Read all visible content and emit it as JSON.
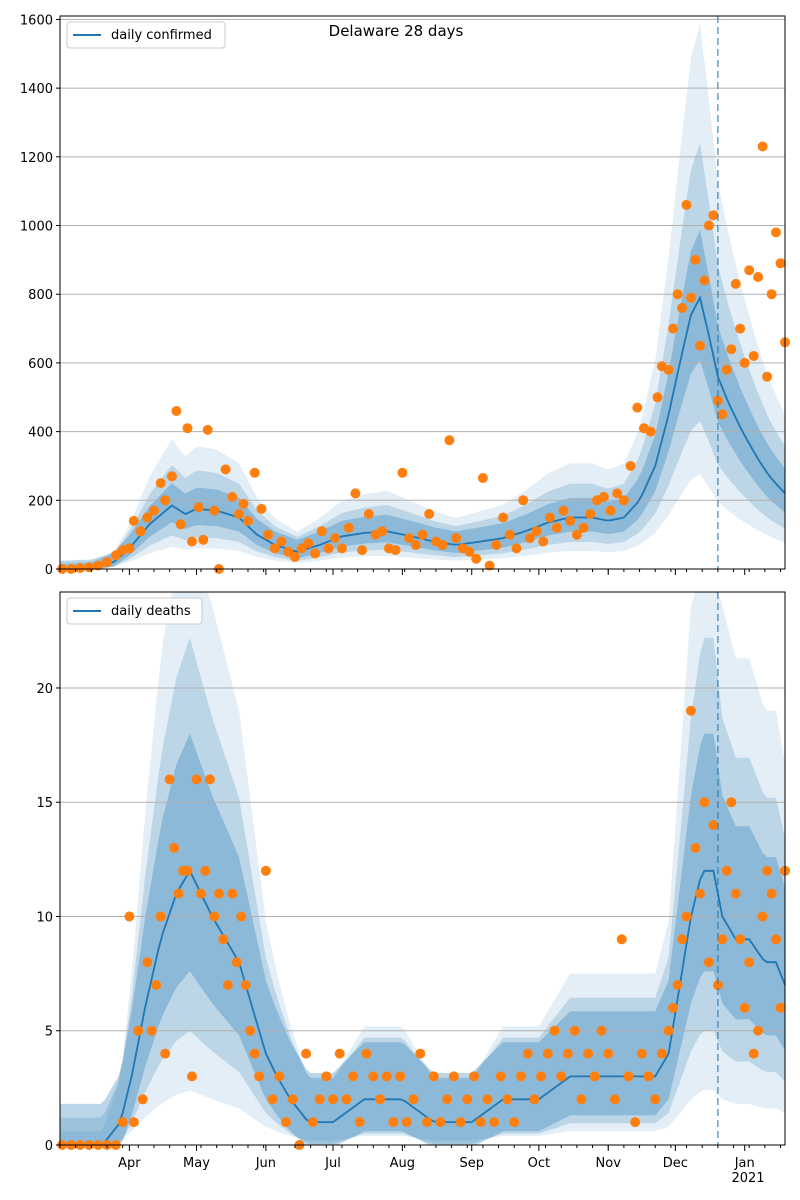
{
  "colors": {
    "line": "#1f77b4",
    "dots": "#ff7f0e",
    "band": "#1f77b4",
    "grid": "#b0b0b0",
    "vline": "#1f77b4"
  },
  "chart_data": [
    {
      "type": "line",
      "title": "Delaware 28 days",
      "legend": {
        "label": "daily confirmed",
        "placement": "top-left"
      },
      "grid": "horizontal",
      "ylim": [
        0,
        1610
      ],
      "yticks": [
        0,
        200,
        400,
        600,
        800,
        1000,
        1200,
        1400,
        1600
      ],
      "xrange_dates": [
        "2020-03-01",
        "2021-01-19"
      ],
      "month_ticks": [
        {
          "date": "2020-04-01",
          "label": "Apr"
        },
        {
          "date": "2020-05-01",
          "label": "May"
        },
        {
          "date": "2020-06-01",
          "label": "Jun"
        },
        {
          "date": "2020-07-01",
          "label": "Jul"
        },
        {
          "date": "2020-08-01",
          "label": "Aug"
        },
        {
          "date": "2020-09-01",
          "label": "Sep"
        },
        {
          "date": "2020-10-01",
          "label": "Oct"
        },
        {
          "date": "2020-11-01",
          "label": "Nov"
        },
        {
          "date": "2020-12-01",
          "label": "Dec"
        },
        {
          "date": "2021-01-01",
          "label": "Jan"
        }
      ],
      "year_label": "",
      "vline_date": "2020-12-20",
      "series_line": {
        "name": "daily confirmed",
        "x": [
          "2020-03-01",
          "2020-03-15",
          "2020-03-25",
          "2020-04-01",
          "2020-04-10",
          "2020-04-20",
          "2020-04-26",
          "2020-05-01",
          "2020-05-10",
          "2020-05-20",
          "2020-05-28",
          "2020-06-05",
          "2020-06-15",
          "2020-06-25",
          "2020-07-05",
          "2020-07-15",
          "2020-07-25",
          "2020-08-05",
          "2020-08-15",
          "2020-08-25",
          "2020-09-05",
          "2020-09-15",
          "2020-09-25",
          "2020-10-05",
          "2020-10-15",
          "2020-10-25",
          "2020-11-01",
          "2020-11-08",
          "2020-11-15",
          "2020-11-22",
          "2020-11-28",
          "2020-12-03",
          "2020-12-08",
          "2020-12-12",
          "2020-12-16",
          "2020-12-20",
          "2020-12-25",
          "2020-12-31",
          "2021-01-06",
          "2021-01-12",
          "2021-01-19"
        ],
        "y": [
          0,
          3,
          20,
          60,
          130,
          185,
          160,
          175,
          170,
          150,
          100,
          70,
          50,
          70,
          95,
          105,
          110,
          95,
          80,
          70,
          80,
          90,
          110,
          135,
          150,
          150,
          140,
          150,
          200,
          300,
          450,
          600,
          740,
          790,
          680,
          560,
          480,
          400,
          330,
          270,
          220
        ]
      },
      "band_levels": [
        {
          "opacity": 0.3,
          "scale_lo": 0.78,
          "scale_hi": 1.22
        },
        {
          "opacity": 0.2,
          "scale_lo": 0.55,
          "scale_hi": 1.55
        },
        {
          "opacity": 0.12,
          "scale_lo": 0.35,
          "scale_hi": 2.0
        }
      ],
      "series_points": {
        "name": "",
        "x": [
          "2020-03-02",
          "2020-03-06",
          "2020-03-10",
          "2020-03-14",
          "2020-03-18",
          "2020-03-22",
          "2020-03-26",
          "2020-03-29",
          "2020-04-01",
          "2020-04-03",
          "2020-04-06",
          "2020-04-09",
          "2020-04-12",
          "2020-04-15",
          "2020-04-17",
          "2020-04-20",
          "2020-04-22",
          "2020-04-24",
          "2020-04-27",
          "2020-04-29",
          "2020-05-02",
          "2020-05-04",
          "2020-05-06",
          "2020-05-09",
          "2020-05-11",
          "2020-05-14",
          "2020-05-17",
          "2020-05-20",
          "2020-05-22",
          "2020-05-24",
          "2020-05-27",
          "2020-05-30",
          "2020-06-02",
          "2020-06-05",
          "2020-06-08",
          "2020-06-11",
          "2020-06-14",
          "2020-06-17",
          "2020-06-20",
          "2020-06-23",
          "2020-06-26",
          "2020-06-29",
          "2020-07-02",
          "2020-07-05",
          "2020-07-08",
          "2020-07-11",
          "2020-07-14",
          "2020-07-17",
          "2020-07-20",
          "2020-07-23",
          "2020-07-26",
          "2020-07-29",
          "2020-08-01",
          "2020-08-04",
          "2020-08-07",
          "2020-08-10",
          "2020-08-13",
          "2020-08-16",
          "2020-08-19",
          "2020-08-22",
          "2020-08-25",
          "2020-08-28",
          "2020-08-31",
          "2020-09-03",
          "2020-09-06",
          "2020-09-09",
          "2020-09-12",
          "2020-09-15",
          "2020-09-18",
          "2020-09-21",
          "2020-09-24",
          "2020-09-27",
          "2020-09-30",
          "2020-10-03",
          "2020-10-06",
          "2020-10-09",
          "2020-10-12",
          "2020-10-15",
          "2020-10-18",
          "2020-10-21",
          "2020-10-24",
          "2020-10-27",
          "2020-10-30",
          "2020-11-02",
          "2020-11-05",
          "2020-11-08",
          "2020-11-11",
          "2020-11-14",
          "2020-11-17",
          "2020-11-20",
          "2020-11-23",
          "2020-11-25",
          "2020-11-28",
          "2020-11-30",
          "2020-12-02",
          "2020-12-04",
          "2020-12-06",
          "2020-12-08",
          "2020-12-10",
          "2020-12-12",
          "2020-12-14",
          "2020-12-16",
          "2020-12-18",
          "2020-12-20",
          "2020-12-22",
          "2020-12-24",
          "2020-12-26",
          "2020-12-28",
          "2020-12-30",
          "2021-01-01",
          "2021-01-03",
          "2021-01-05",
          "2021-01-07",
          "2021-01-09",
          "2021-01-11",
          "2021-01-13",
          "2021-01-15",
          "2021-01-17",
          "2021-01-19"
        ],
        "y": [
          0,
          0,
          3,
          5,
          10,
          20,
          40,
          55,
          60,
          140,
          110,
          150,
          170,
          250,
          200,
          270,
          460,
          130,
          410,
          80,
          180,
          85,
          405,
          170,
          0,
          290,
          210,
          160,
          190,
          140,
          280,
          175,
          100,
          60,
          80,
          50,
          35,
          60,
          75,
          45,
          110,
          60,
          90,
          60,
          120,
          220,
          55,
          160,
          100,
          110,
          60,
          55,
          280,
          90,
          70,
          100,
          160,
          80,
          70,
          375,
          90,
          60,
          50,
          30,
          265,
          10,
          70,
          150,
          100,
          60,
          200,
          90,
          110,
          80,
          150,
          120,
          170,
          140,
          100,
          120,
          160,
          200,
          210,
          170,
          220,
          200,
          300,
          470,
          410,
          400,
          500,
          590,
          580,
          700,
          800,
          760,
          1060,
          790,
          900,
          650,
          840,
          1000,
          1030,
          490,
          450,
          580,
          640,
          830,
          700,
          600,
          870,
          620,
          850,
          1230,
          560,
          800,
          980,
          890,
          660
        ]
      }
    },
    {
      "type": "line",
      "title": "",
      "legend": {
        "label": "daily deaths",
        "placement": "top-left"
      },
      "grid": "horizontal",
      "ylim": [
        0,
        24.2
      ],
      "yticks": [
        0,
        5,
        10,
        15,
        20
      ],
      "xrange_dates": [
        "2020-03-01",
        "2021-01-19"
      ],
      "month_ticks": [
        {
          "date": "2020-04-01",
          "label": "Apr"
        },
        {
          "date": "2020-05-01",
          "label": "May"
        },
        {
          "date": "2020-06-01",
          "label": "Jun"
        },
        {
          "date": "2020-07-01",
          "label": "Jul"
        },
        {
          "date": "2020-08-01",
          "label": "Aug"
        },
        {
          "date": "2020-09-01",
          "label": "Sep"
        },
        {
          "date": "2020-10-01",
          "label": "Oct"
        },
        {
          "date": "2020-11-01",
          "label": "Nov"
        },
        {
          "date": "2020-12-01",
          "label": "Dec"
        },
        {
          "date": "2021-01-01",
          "label": "Jan"
        }
      ],
      "year_label": "2021",
      "vline_date": "2020-12-20",
      "series_line": {
        "name": "daily deaths",
        "x": [
          "2020-03-01",
          "2020-03-20",
          "2020-03-28",
          "2020-04-02",
          "2020-04-08",
          "2020-04-15",
          "2020-04-22",
          "2020-04-28",
          "2020-05-03",
          "2020-05-08",
          "2020-05-14",
          "2020-05-20",
          "2020-05-26",
          "2020-06-01",
          "2020-06-06",
          "2020-06-12",
          "2020-06-20",
          "2020-07-01",
          "2020-07-15",
          "2020-08-01",
          "2020-08-15",
          "2020-09-01",
          "2020-09-15",
          "2020-10-01",
          "2020-10-15",
          "2020-11-01",
          "2020-11-15",
          "2020-11-22",
          "2020-11-28",
          "2020-12-03",
          "2020-12-08",
          "2020-12-13",
          "2020-12-18",
          "2020-12-22",
          "2020-12-28",
          "2021-01-03",
          "2021-01-10",
          "2021-01-15",
          "2021-01-19"
        ],
        "y": [
          0,
          0,
          1,
          3,
          6,
          9,
          11,
          12,
          11,
          10,
          9,
          8,
          6,
          4,
          3,
          2,
          1,
          1,
          2,
          2,
          1,
          1,
          2,
          2,
          3,
          3,
          3,
          3,
          4,
          7,
          10,
          12,
          12,
          10,
          9,
          9,
          8,
          8,
          7
        ]
      },
      "band_levels": [
        {
          "opacity": 0.3,
          "scale_lo": 0.7,
          "scale_hi": 1.35
        },
        {
          "opacity": 0.2,
          "scale_lo": 0.45,
          "scale_hi": 1.75
        },
        {
          "opacity": 0.12,
          "scale_lo": 0.2,
          "scale_hi": 2.3
        }
      ],
      "series_points": {
        "name": "",
        "x": [
          "2020-03-02",
          "2020-03-06",
          "2020-03-10",
          "2020-03-14",
          "2020-03-18",
          "2020-03-22",
          "2020-03-26",
          "2020-03-29",
          "2020-04-01",
          "2020-04-03",
          "2020-04-05",
          "2020-04-07",
          "2020-04-09",
          "2020-04-11",
          "2020-04-13",
          "2020-04-15",
          "2020-04-17",
          "2020-04-19",
          "2020-04-21",
          "2020-04-23",
          "2020-04-25",
          "2020-04-27",
          "2020-04-29",
          "2020-05-01",
          "2020-05-03",
          "2020-05-05",
          "2020-05-07",
          "2020-05-09",
          "2020-05-11",
          "2020-05-13",
          "2020-05-15",
          "2020-05-17",
          "2020-05-19",
          "2020-05-21",
          "2020-05-23",
          "2020-05-25",
          "2020-05-27",
          "2020-05-29",
          "2020-06-01",
          "2020-06-04",
          "2020-06-07",
          "2020-06-10",
          "2020-06-13",
          "2020-06-16",
          "2020-06-19",
          "2020-06-22",
          "2020-06-25",
          "2020-06-28",
          "2020-07-01",
          "2020-07-04",
          "2020-07-07",
          "2020-07-10",
          "2020-07-13",
          "2020-07-16",
          "2020-07-19",
          "2020-07-22",
          "2020-07-25",
          "2020-07-28",
          "2020-07-31",
          "2020-08-03",
          "2020-08-06",
          "2020-08-09",
          "2020-08-12",
          "2020-08-15",
          "2020-08-18",
          "2020-08-21",
          "2020-08-24",
          "2020-08-27",
          "2020-08-30",
          "2020-09-02",
          "2020-09-05",
          "2020-09-08",
          "2020-09-11",
          "2020-09-14",
          "2020-09-17",
          "2020-09-20",
          "2020-09-23",
          "2020-09-26",
          "2020-09-29",
          "2020-10-02",
          "2020-10-05",
          "2020-10-08",
          "2020-10-11",
          "2020-10-14",
          "2020-10-17",
          "2020-10-20",
          "2020-10-23",
          "2020-10-26",
          "2020-10-29",
          "2020-11-01",
          "2020-11-04",
          "2020-11-07",
          "2020-11-10",
          "2020-11-13",
          "2020-11-16",
          "2020-11-19",
          "2020-11-22",
          "2020-11-25",
          "2020-11-28",
          "2020-11-30",
          "2020-12-02",
          "2020-12-04",
          "2020-12-06",
          "2020-12-08",
          "2020-12-10",
          "2020-12-12",
          "2020-12-14",
          "2020-12-16",
          "2020-12-18",
          "2020-12-20",
          "2020-12-22",
          "2020-12-24",
          "2020-12-26",
          "2020-12-28",
          "2020-12-30",
          "2021-01-01",
          "2021-01-03",
          "2021-01-05",
          "2021-01-07",
          "2021-01-09",
          "2021-01-11",
          "2021-01-13",
          "2021-01-15",
          "2021-01-17",
          "2021-01-19"
        ],
        "y": [
          0,
          0,
          0,
          0,
          0,
          0,
          0,
          1,
          10,
          1,
          5,
          2,
          8,
          5,
          7,
          10,
          4,
          16,
          13,
          11,
          12,
          12,
          3,
          16,
          11,
          12,
          16,
          10,
          11,
          9,
          7,
          11,
          8,
          10,
          7,
          5,
          4,
          3,
          12,
          2,
          3,
          1,
          2,
          0,
          4,
          1,
          2,
          3,
          2,
          4,
          2,
          3,
          1,
          4,
          3,
          2,
          3,
          1,
          3,
          1,
          2,
          4,
          1,
          3,
          1,
          2,
          3,
          1,
          2,
          3,
          1,
          2,
          1,
          3,
          2,
          1,
          3,
          4,
          2,
          3,
          4,
          5,
          3,
          4,
          5,
          2,
          4,
          3,
          5,
          4,
          2,
          9,
          3,
          1,
          4,
          3,
          2,
          4,
          5,
          6,
          7,
          9,
          10,
          19,
          13,
          11,
          15,
          8,
          14,
          7,
          9,
          12,
          15,
          11,
          9,
          6,
          8,
          4,
          5,
          10,
          12,
          11,
          9,
          6,
          12
        ]
      }
    }
  ]
}
